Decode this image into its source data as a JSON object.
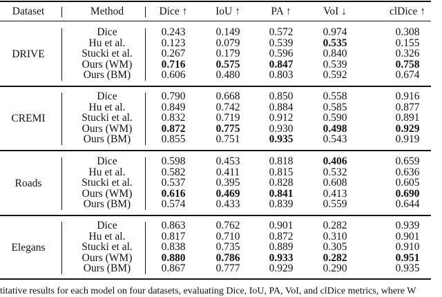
{
  "header": {
    "dataset": "Dataset",
    "method": "Method",
    "metrics": [
      "Dice ↑",
      "IoU ↑",
      "PA ↑",
      "VoI ↓",
      "clDice ↑"
    ]
  },
  "groups": [
    {
      "dataset": "DRIVE",
      "rows": [
        {
          "method": "Dice",
          "values": [
            "0.243",
            "0.149",
            "0.572",
            "0.974",
            "0.308"
          ],
          "bold": [
            false,
            false,
            false,
            false,
            false
          ]
        },
        {
          "method": "Hu et al.",
          "values": [
            "0.123",
            "0.079",
            "0.539",
            "0.535",
            "0.155"
          ],
          "bold": [
            false,
            false,
            false,
            true,
            false
          ]
        },
        {
          "method": "Stucki et al.",
          "values": [
            "0.267",
            "0.179",
            "0.596",
            "0.840",
            "0.326"
          ],
          "bold": [
            false,
            false,
            false,
            false,
            false
          ]
        },
        {
          "method": "Ours (WM)",
          "values": [
            "0.716",
            "0.575",
            "0.847",
            "0.539",
            "0.758"
          ],
          "bold": [
            true,
            true,
            true,
            false,
            true
          ]
        },
        {
          "method": "Ours (BM)",
          "values": [
            "0.606",
            "0.480",
            "0.803",
            "0.592",
            "0.674"
          ],
          "bold": [
            false,
            false,
            false,
            false,
            false
          ]
        }
      ]
    },
    {
      "dataset": "CREMI",
      "rows": [
        {
          "method": "Dice",
          "values": [
            "0.790",
            "0.668",
            "0.850",
            "0.558",
            "0.916"
          ],
          "bold": [
            false,
            false,
            false,
            false,
            false
          ]
        },
        {
          "method": "Hu et al.",
          "values": [
            "0.849",
            "0.742",
            "0.884",
            "0.585",
            "0.877"
          ],
          "bold": [
            false,
            false,
            false,
            false,
            false
          ]
        },
        {
          "method": "Stucki et al.",
          "values": [
            "0.832",
            "0.719",
            "0.912",
            "0.590",
            "0.891"
          ],
          "bold": [
            false,
            false,
            false,
            false,
            false
          ]
        },
        {
          "method": "Ours (WM)",
          "values": [
            "0.872",
            "0.775",
            "0.930",
            "0.498",
            "0.929"
          ],
          "bold": [
            true,
            true,
            false,
            true,
            true
          ]
        },
        {
          "method": "Ours (BM)",
          "values": [
            "0.855",
            "0.751",
            "0.935",
            "0.543",
            "0.919"
          ],
          "bold": [
            false,
            false,
            true,
            false,
            false
          ]
        }
      ]
    },
    {
      "dataset": "Roads",
      "rows": [
        {
          "method": "Dice",
          "values": [
            "0.598",
            "0.453",
            "0.818",
            "0.406",
            "0.659"
          ],
          "bold": [
            false,
            false,
            false,
            true,
            false
          ]
        },
        {
          "method": "Hu et al.",
          "values": [
            "0.582",
            "0.411",
            "0.815",
            "0.532",
            "0.636"
          ],
          "bold": [
            false,
            false,
            false,
            false,
            false
          ]
        },
        {
          "method": "Stucki et al.",
          "values": [
            "0.537",
            "0.395",
            "0.828",
            "0.608",
            "0.605"
          ],
          "bold": [
            false,
            false,
            false,
            false,
            false
          ]
        },
        {
          "method": "Ours (WM)",
          "values": [
            "0.616",
            "0.469",
            "0.841",
            "0.413",
            "0.690"
          ],
          "bold": [
            true,
            true,
            true,
            false,
            true
          ]
        },
        {
          "method": "Ours (BM)",
          "values": [
            "0.574",
            "0.433",
            "0.839",
            "0.559",
            "0.644"
          ],
          "bold": [
            false,
            false,
            false,
            false,
            false
          ]
        }
      ]
    },
    {
      "dataset": "Elegans",
      "rows": [
        {
          "method": "Dice",
          "values": [
            "0.863",
            "0.762",
            "0.901",
            "0.282",
            "0.939"
          ],
          "bold": [
            false,
            false,
            false,
            false,
            false
          ]
        },
        {
          "method": "Hu et al.",
          "values": [
            "0.817",
            "0.710",
            "0.872",
            "0.310",
            "0.901"
          ],
          "bold": [
            false,
            false,
            false,
            false,
            false
          ]
        },
        {
          "method": "Stucki et al.",
          "values": [
            "0.838",
            "0.735",
            "0.889",
            "0.305",
            "0.910"
          ],
          "bold": [
            false,
            false,
            false,
            false,
            false
          ]
        },
        {
          "method": "Ours (WM)",
          "values": [
            "0.880",
            "0.786",
            "0.933",
            "0.282",
            "0.951"
          ],
          "bold": [
            true,
            true,
            true,
            true,
            true
          ]
        },
        {
          "method": "Ours (BM)",
          "values": [
            "0.867",
            "0.777",
            "0.929",
            "0.290",
            "0.935"
          ],
          "bold": [
            false,
            false,
            false,
            false,
            false
          ]
        }
      ]
    }
  ],
  "caption_fragment": "titative results for each model on four datasets, evaluating Dice, IoU, PA, VoI, and clDice metrics, where W"
}
